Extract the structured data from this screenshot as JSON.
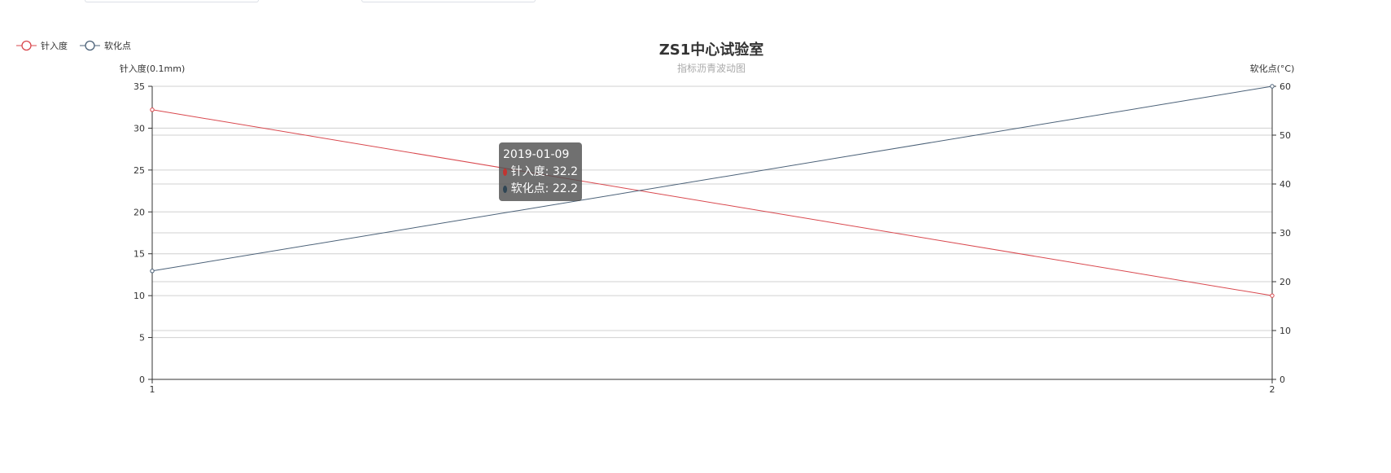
{
  "chart_data": {
    "type": "line",
    "title": "ZS1中心试验室",
    "subtitle": "指标沥青波动图",
    "x": [
      "1",
      "2"
    ],
    "y_left": {
      "label": "针入度(0.1mm)",
      "min": 0,
      "max": 35,
      "ticks": [
        "0",
        "5",
        "10",
        "15",
        "20",
        "25",
        "30",
        "35"
      ]
    },
    "y_right": {
      "label": "软化点(°C)",
      "min": 0,
      "max": 60,
      "ticks": [
        "0",
        "10",
        "20",
        "30",
        "40",
        "50",
        "60"
      ]
    },
    "series": [
      {
        "name": "针入度",
        "axis": "left",
        "color": "#d9484e",
        "values": [
          32.2,
          10
        ]
      },
      {
        "name": "软化点",
        "axis": "right",
        "color": "#4b6178",
        "values": [
          22.2,
          60
        ]
      }
    ],
    "grid": true,
    "legend": "top-left"
  },
  "tooltip": {
    "date": "2019-01-09",
    "rows": [
      {
        "label": "针入度: 32.2",
        "color": "#c23531"
      },
      {
        "label": "软化点: 22.2",
        "color": "#2f4554"
      }
    ]
  }
}
